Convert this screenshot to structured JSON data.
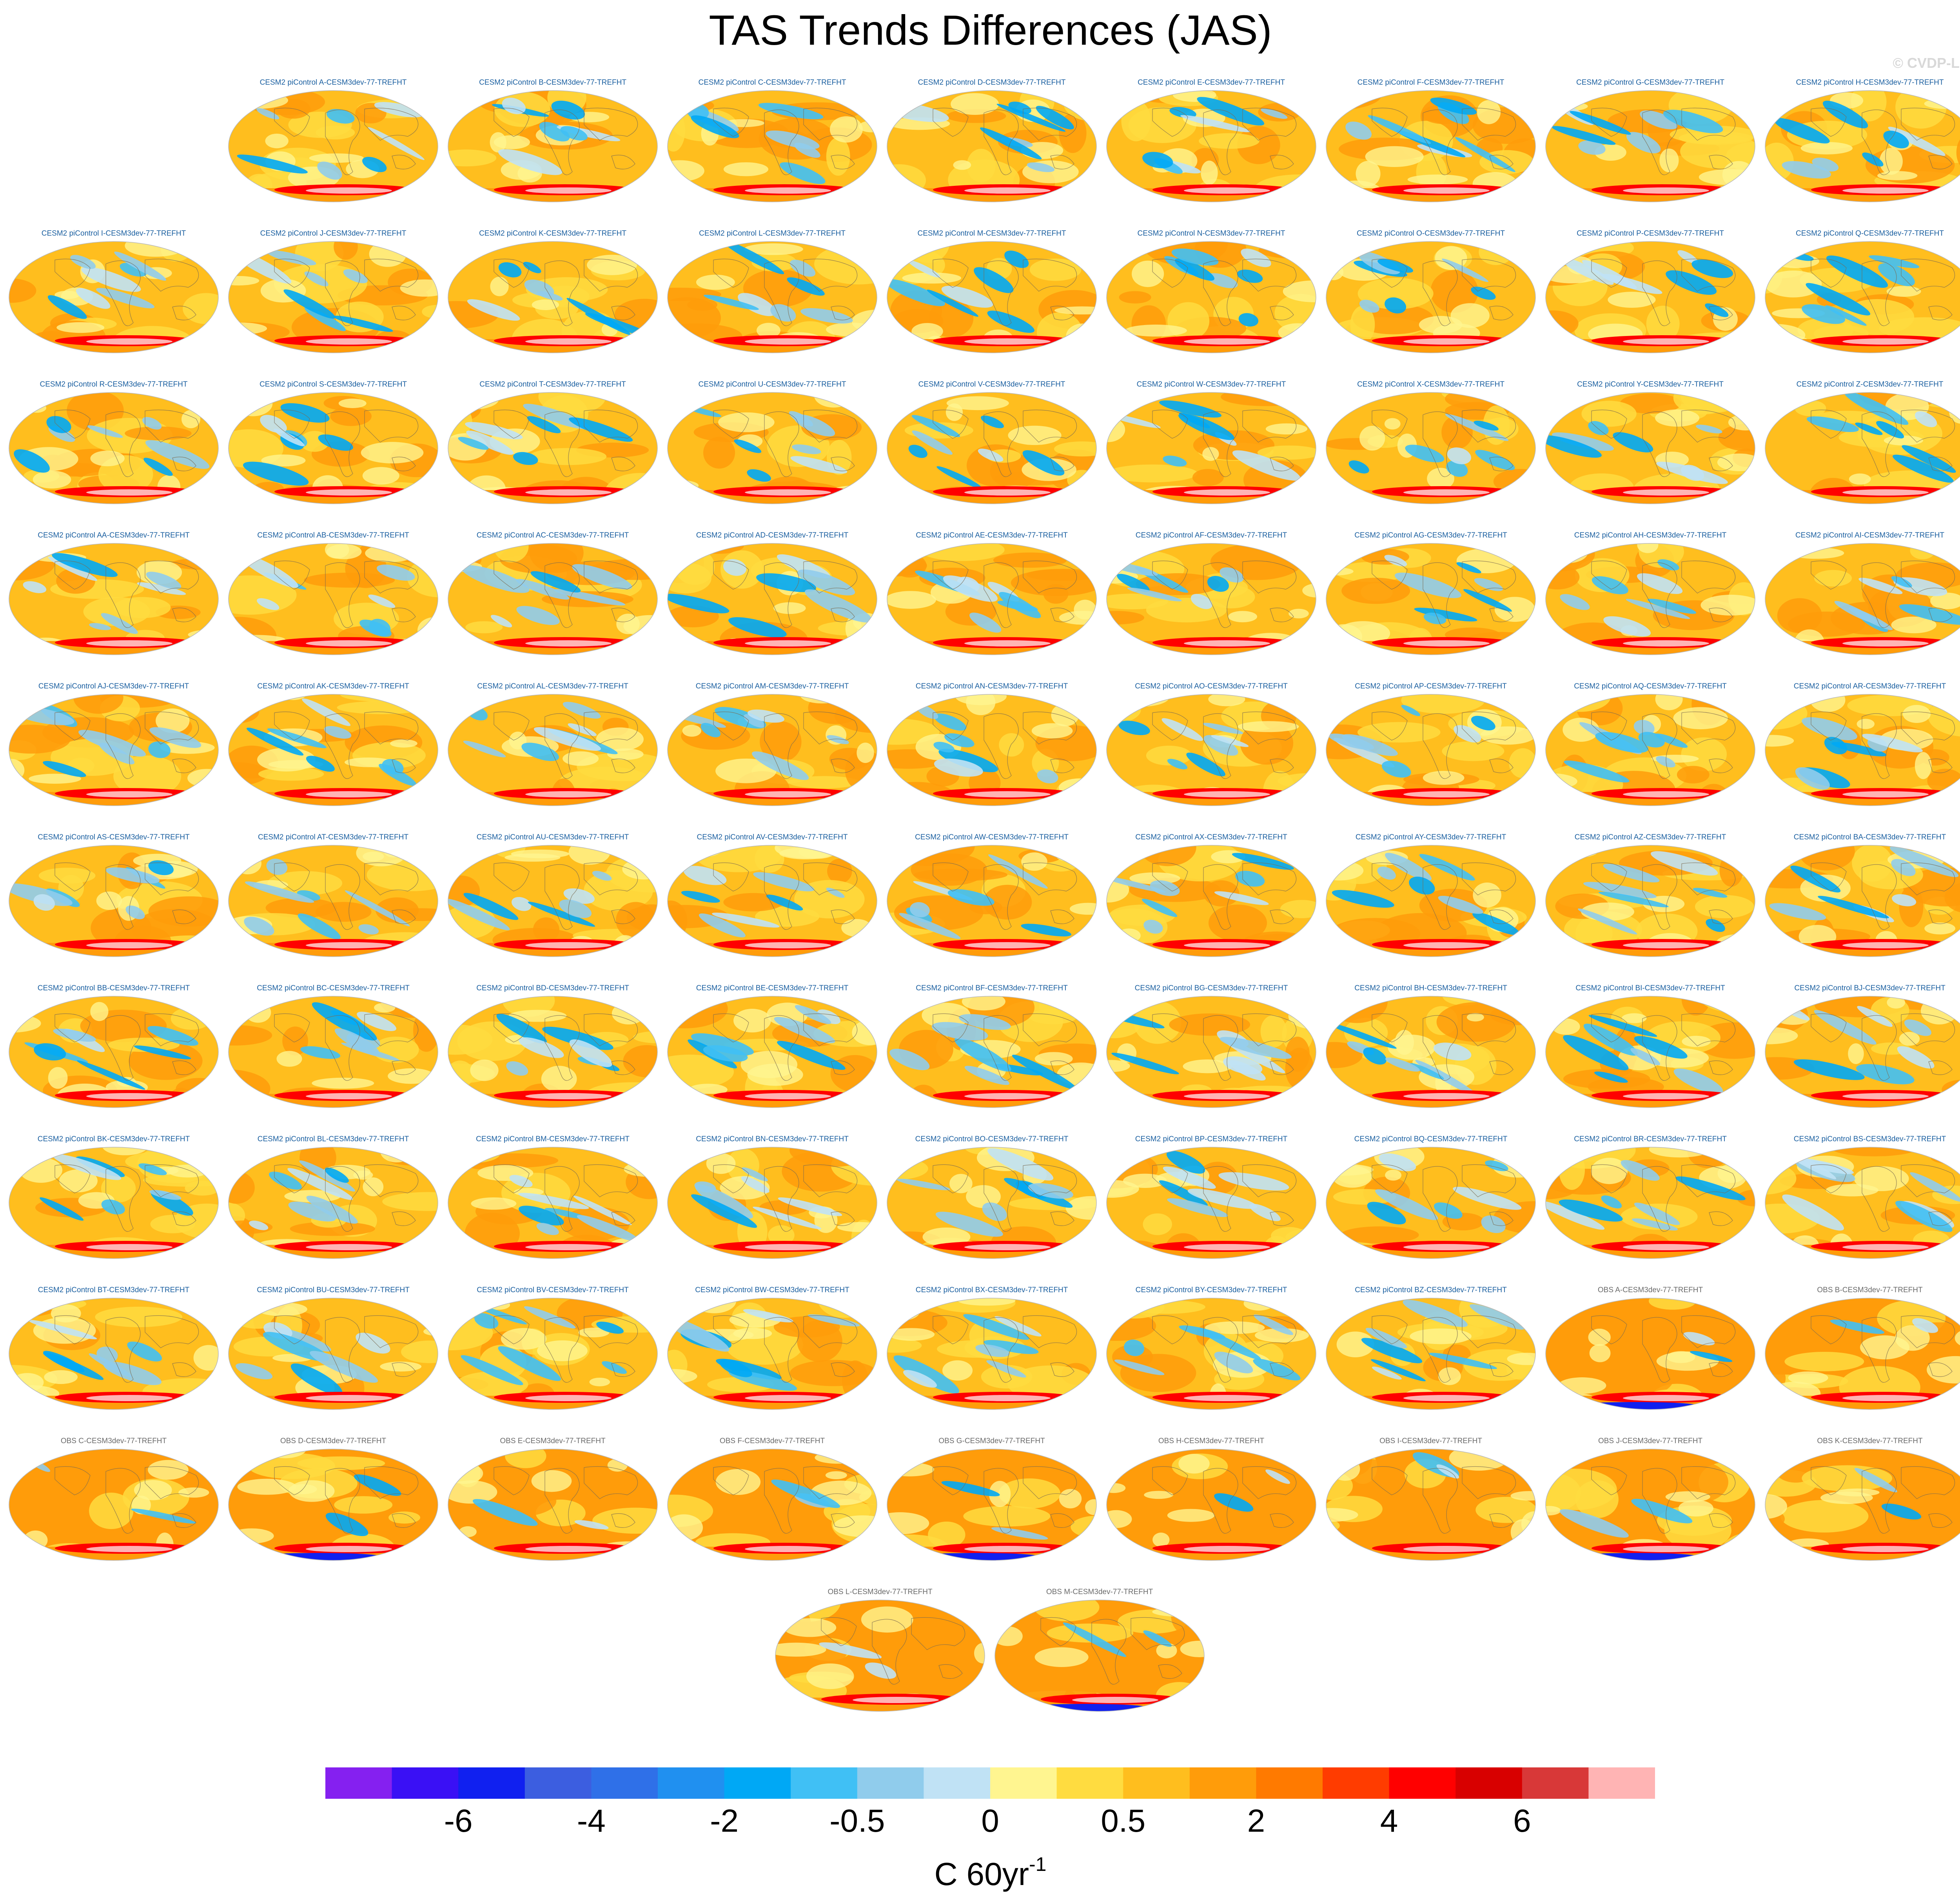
{
  "title": "TAS Trends Differences (JAS)",
  "copyright": "© CVDP-LE",
  "chart_data": {
    "type": "heatmap",
    "title": "TAS Trends Differences (JAS)",
    "projection": "robinson",
    "panels": [
      "CESM2 piControl A-CESM3dev-77-TREFHT",
      "CESM2 piControl B-CESM3dev-77-TREFHT",
      "CESM2 piControl C-CESM3dev-77-TREFHT",
      "CESM2 piControl D-CESM3dev-77-TREFHT",
      "CESM2 piControl E-CESM3dev-77-TREFHT",
      "CESM2 piControl F-CESM3dev-77-TREFHT",
      "CESM2 piControl G-CESM3dev-77-TREFHT",
      "CESM2 piControl H-CESM3dev-77-TREFHT",
      "CESM2 piControl I-CESM3dev-77-TREFHT",
      "CESM2 piControl J-CESM3dev-77-TREFHT",
      "CESM2 piControl K-CESM3dev-77-TREFHT",
      "CESM2 piControl L-CESM3dev-77-TREFHT",
      "CESM2 piControl M-CESM3dev-77-TREFHT",
      "CESM2 piControl N-CESM3dev-77-TREFHT",
      "CESM2 piControl O-CESM3dev-77-TREFHT",
      "CESM2 piControl P-CESM3dev-77-TREFHT",
      "CESM2 piControl Q-CESM3dev-77-TREFHT",
      "CESM2 piControl R-CESM3dev-77-TREFHT",
      "CESM2 piControl S-CESM3dev-77-TREFHT",
      "CESM2 piControl T-CESM3dev-77-TREFHT",
      "CESM2 piControl U-CESM3dev-77-TREFHT",
      "CESM2 piControl V-CESM3dev-77-TREFHT",
      "CESM2 piControl W-CESM3dev-77-TREFHT",
      "CESM2 piControl X-CESM3dev-77-TREFHT",
      "CESM2 piControl Y-CESM3dev-77-TREFHT",
      "CESM2 piControl Z-CESM3dev-77-TREFHT",
      "CESM2 piControl AA-CESM3dev-77-TREFHT",
      "CESM2 piControl AB-CESM3dev-77-TREFHT",
      "CESM2 piControl AC-CESM3dev-77-TREFHT",
      "CESM2 piControl AD-CESM3dev-77-TREFHT",
      "CESM2 piControl AE-CESM3dev-77-TREFHT",
      "CESM2 piControl AF-CESM3dev-77-TREFHT",
      "CESM2 piControl AG-CESM3dev-77-TREFHT",
      "CESM2 piControl AH-CESM3dev-77-TREFHT",
      "CESM2 piControl AI-CESM3dev-77-TREFHT",
      "CESM2 piControl AJ-CESM3dev-77-TREFHT",
      "CESM2 piControl AK-CESM3dev-77-TREFHT",
      "CESM2 piControl AL-CESM3dev-77-TREFHT",
      "CESM2 piControl AM-CESM3dev-77-TREFHT",
      "CESM2 piControl AN-CESM3dev-77-TREFHT",
      "CESM2 piControl AO-CESM3dev-77-TREFHT",
      "CESM2 piControl AP-CESM3dev-77-TREFHT",
      "CESM2 piControl AQ-CESM3dev-77-TREFHT",
      "CESM2 piControl AR-CESM3dev-77-TREFHT",
      "CESM2 piControl AS-CESM3dev-77-TREFHT",
      "CESM2 piControl AT-CESM3dev-77-TREFHT",
      "CESM2 piControl AU-CESM3dev-77-TREFHT",
      "CESM2 piControl AV-CESM3dev-77-TREFHT",
      "CESM2 piControl AW-CESM3dev-77-TREFHT",
      "CESM2 piControl AX-CESM3dev-77-TREFHT",
      "CESM2 piControl AY-CESM3dev-77-TREFHT",
      "CESM2 piControl AZ-CESM3dev-77-TREFHT",
      "CESM2 piControl BA-CESM3dev-77-TREFHT",
      "CESM2 piControl BB-CESM3dev-77-TREFHT",
      "CESM2 piControl BC-CESM3dev-77-TREFHT",
      "CESM2 piControl BD-CESM3dev-77-TREFHT",
      "CESM2 piControl BE-CESM3dev-77-TREFHT",
      "CESM2 piControl BF-CESM3dev-77-TREFHT",
      "CESM2 piControl BG-CESM3dev-77-TREFHT",
      "CESM2 piControl BH-CESM3dev-77-TREFHT",
      "CESM2 piControl BI-CESM3dev-77-TREFHT",
      "CESM2 piControl BJ-CESM3dev-77-TREFHT",
      "CESM2 piControl BK-CESM3dev-77-TREFHT",
      "CESM2 piControl BL-CESM3dev-77-TREFHT",
      "CESM2 piControl BM-CESM3dev-77-TREFHT",
      "CESM2 piControl BN-CESM3dev-77-TREFHT",
      "CESM2 piControl BO-CESM3dev-77-TREFHT",
      "CESM2 piControl BP-CESM3dev-77-TREFHT",
      "CESM2 piControl BQ-CESM3dev-77-TREFHT",
      "CESM2 piControl BR-CESM3dev-77-TREFHT",
      "CESM2 piControl BS-CESM3dev-77-TREFHT",
      "CESM2 piControl BT-CESM3dev-77-TREFHT",
      "CESM2 piControl BU-CESM3dev-77-TREFHT",
      "CESM2 piControl BV-CESM3dev-77-TREFHT",
      "CESM2 piControl BW-CESM3dev-77-TREFHT",
      "CESM2 piControl BX-CESM3dev-77-TREFHT",
      "CESM2 piControl BY-CESM3dev-77-TREFHT",
      "CESM2 piControl BZ-CESM3dev-77-TREFHT",
      "OBS A-CESM3dev-77-TREFHT",
      "OBS B-CESM3dev-77-TREFHT",
      "OBS C-CESM3dev-77-TREFHT",
      "OBS D-CESM3dev-77-TREFHT",
      "OBS E-CESM3dev-77-TREFHT",
      "OBS F-CESM3dev-77-TREFHT",
      "OBS G-CESM3dev-77-TREFHT",
      "OBS H-CESM3dev-77-TREFHT",
      "OBS I-CESM3dev-77-TREFHT",
      "OBS J-CESM3dev-77-TREFHT",
      "OBS K-CESM3dev-77-TREFHT",
      "OBS L-CESM3dev-77-TREFHT",
      "OBS M-CESM3dev-77-TREFHT"
    ],
    "colorbar": {
      "colors": [
        "#8520f0",
        "#3a10f5",
        "#1020f0",
        "#3c5ee0",
        "#2f70e8",
        "#2090f0",
        "#00a8f5",
        "#40c0f5",
        "#90ccec",
        "#c0e2f5",
        "#fff590",
        "#ffdc40",
        "#ffbe1e",
        "#ff9c0a",
        "#ff7a00",
        "#ff3c00",
        "#ff0000",
        "#d80000",
        "#d83838",
        "#ffb4b4"
      ],
      "tick_labels": [
        "-6",
        "-4",
        "-2",
        "-0.5",
        "0",
        "0.5",
        "2",
        "4",
        "6"
      ],
      "unit": "C 60yr",
      "unit_exponent": "-1"
    }
  },
  "colors": {
    "cesm_label": "#1a5fa0",
    "obs_label": "#6a6a6a",
    "map_base": "#ffb41e"
  }
}
